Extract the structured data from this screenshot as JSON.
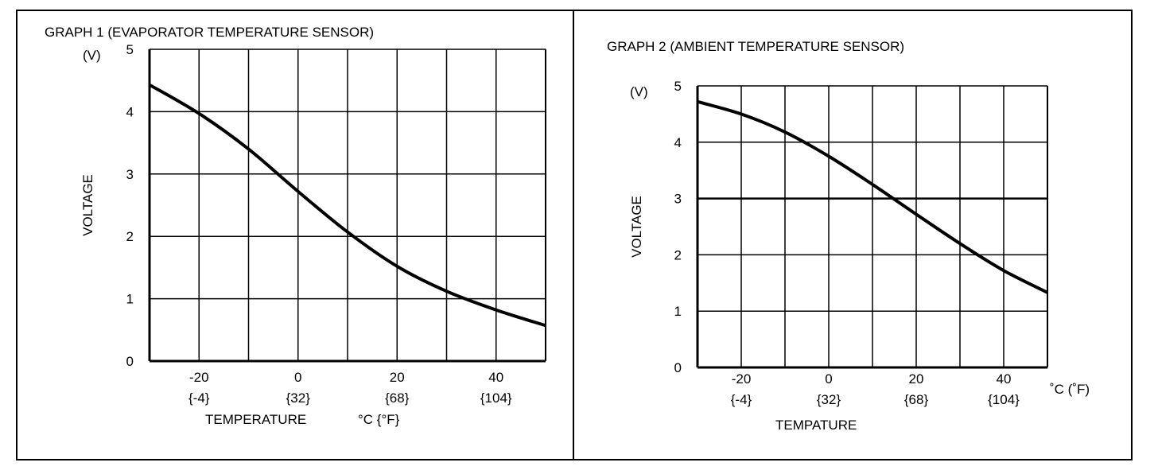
{
  "chart_data": [
    {
      "type": "line",
      "title": "GRAPH 1 (EVAPORATOR TEMPERATURE SENSOR)",
      "xlabel": "TEMPERATURE",
      "xunit": "°C {°F}",
      "ylabel": "VOLTAGE",
      "yunit": "(V)",
      "xlim": [
        -30,
        50
      ],
      "ylim": [
        0,
        5
      ],
      "grid": true,
      "x_ticks": [
        -20,
        0,
        20,
        40
      ],
      "x_ticks_f": [
        "{-4}",
        "{32}",
        "{68}",
        "{104}"
      ],
      "y_ticks": [
        0,
        1,
        2,
        3,
        4,
        5
      ],
      "series": [
        {
          "name": "Voltage",
          "x": [
            -30,
            -20,
            -10,
            0,
            10,
            20,
            30,
            40,
            50
          ],
          "y": [
            4.43,
            3.97,
            3.4,
            2.72,
            2.07,
            1.52,
            1.12,
            0.82,
            0.57
          ]
        }
      ]
    },
    {
      "type": "line",
      "title": "GRAPH 2 (AMBIENT TEMPERATURE SENSOR)",
      "xlabel": "TEMPATURE",
      "xunit": "˚C (˚F)",
      "ylabel": "VOLTAGE",
      "yunit": "(V)",
      "xlim": [
        -30,
        50
      ],
      "ylim": [
        0,
        5
      ],
      "grid": true,
      "x_ticks": [
        -20,
        0,
        20,
        40
      ],
      "x_ticks_f": [
        "{-4}",
        "{32}",
        "{68}",
        "{104}"
      ],
      "y_ticks": [
        0,
        1,
        2,
        3,
        4,
        5
      ],
      "series": [
        {
          "name": "Voltage",
          "x": [
            -30,
            -20,
            -10,
            0,
            10,
            20,
            30,
            40,
            50
          ],
          "y": [
            4.72,
            4.5,
            4.18,
            3.75,
            3.25,
            2.72,
            2.2,
            1.72,
            1.33
          ]
        }
      ]
    }
  ]
}
